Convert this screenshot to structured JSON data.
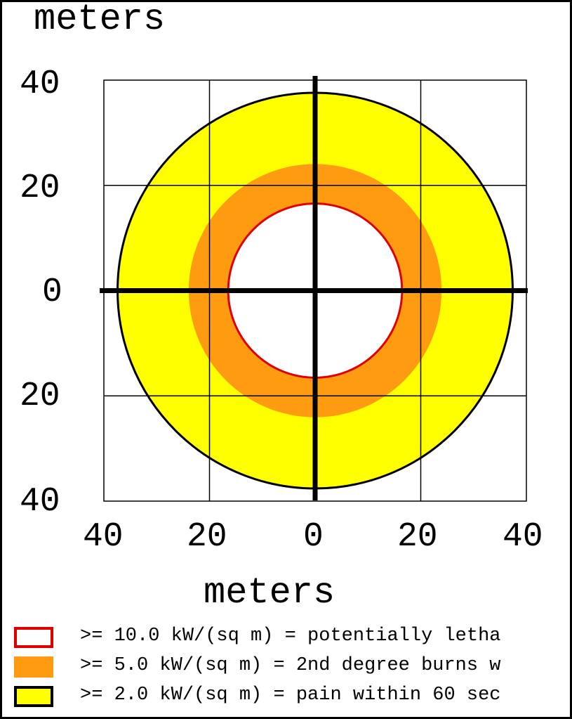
{
  "units": {
    "y_label": "meters",
    "x_label": "meters"
  },
  "axes": {
    "y_ticks": [
      "40",
      "20",
      "0",
      "20",
      "40"
    ],
    "x_ticks": [
      "40",
      "20",
      "0",
      "20",
      "40"
    ],
    "range_m": [
      -40,
      40
    ]
  },
  "zones": [
    {
      "threshold_kw_per_sq_m": 10.0,
      "radius_m": 16.5,
      "color": "#ffffff",
      "outline": "#e00000",
      "label": ">= 10.0 kW/(sq m) = potentially letha"
    },
    {
      "threshold_kw_per_sq_m": 5.0,
      "radius_m": 24,
      "color": "#ff9b10",
      "outline": "#ff9b10",
      "label": ">= 5.0 kW/(sq m) = 2nd degree burns w"
    },
    {
      "threshold_kw_per_sq_m": 2.0,
      "radius_m": 37.5,
      "color": "#ffff00",
      "outline": "#000000",
      "label": ">= 2.0 kW/(sq m) = pain within 60 sec"
    }
  ],
  "colors": {
    "grid": "#000000",
    "background": "#ffffff"
  }
}
